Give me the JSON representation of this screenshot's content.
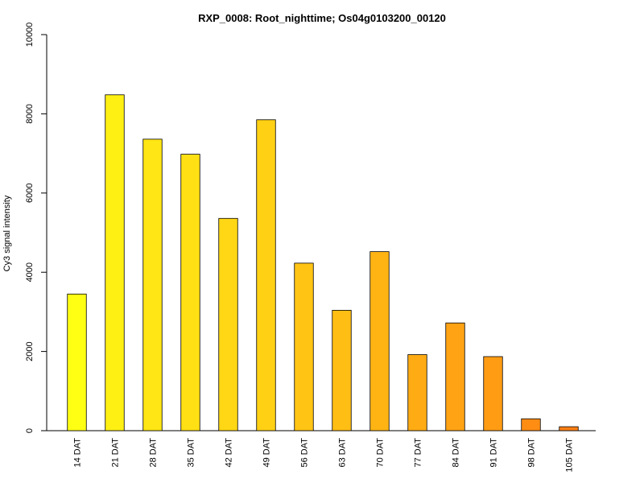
{
  "chart_data": {
    "type": "bar",
    "title": "RXP_0008: Root_nighttime; Os04g0103200_00120",
    "xlabel": "",
    "ylabel": "Cy3 signal intensity",
    "ylim": [
      0,
      10000
    ],
    "yticks": [
      0,
      2000,
      4000,
      6000,
      8000,
      10000
    ],
    "categories": [
      "14 DAT",
      "21 DAT",
      "28 DAT",
      "35 DAT",
      "42 DAT",
      "49 DAT",
      "56 DAT",
      "63 DAT",
      "70 DAT",
      "77 DAT",
      "84 DAT",
      "91 DAT",
      "98 DAT",
      "105 DAT"
    ],
    "values": [
      3450,
      8480,
      7360,
      6980,
      5360,
      7850,
      4230,
      3040,
      4520,
      1920,
      2720,
      1870,
      300,
      100
    ],
    "colors": [
      "#FFFF14",
      "#FFF014",
      "#FFE614",
      "#FFE014",
      "#FFD714",
      "#FFD014",
      "#FFC414",
      "#FFBE14",
      "#FFB414",
      "#FFAC14",
      "#FFA314",
      "#FF9C14",
      "#FF8D14",
      "#FF8014"
    ],
    "grid": false,
    "legend": "none"
  }
}
